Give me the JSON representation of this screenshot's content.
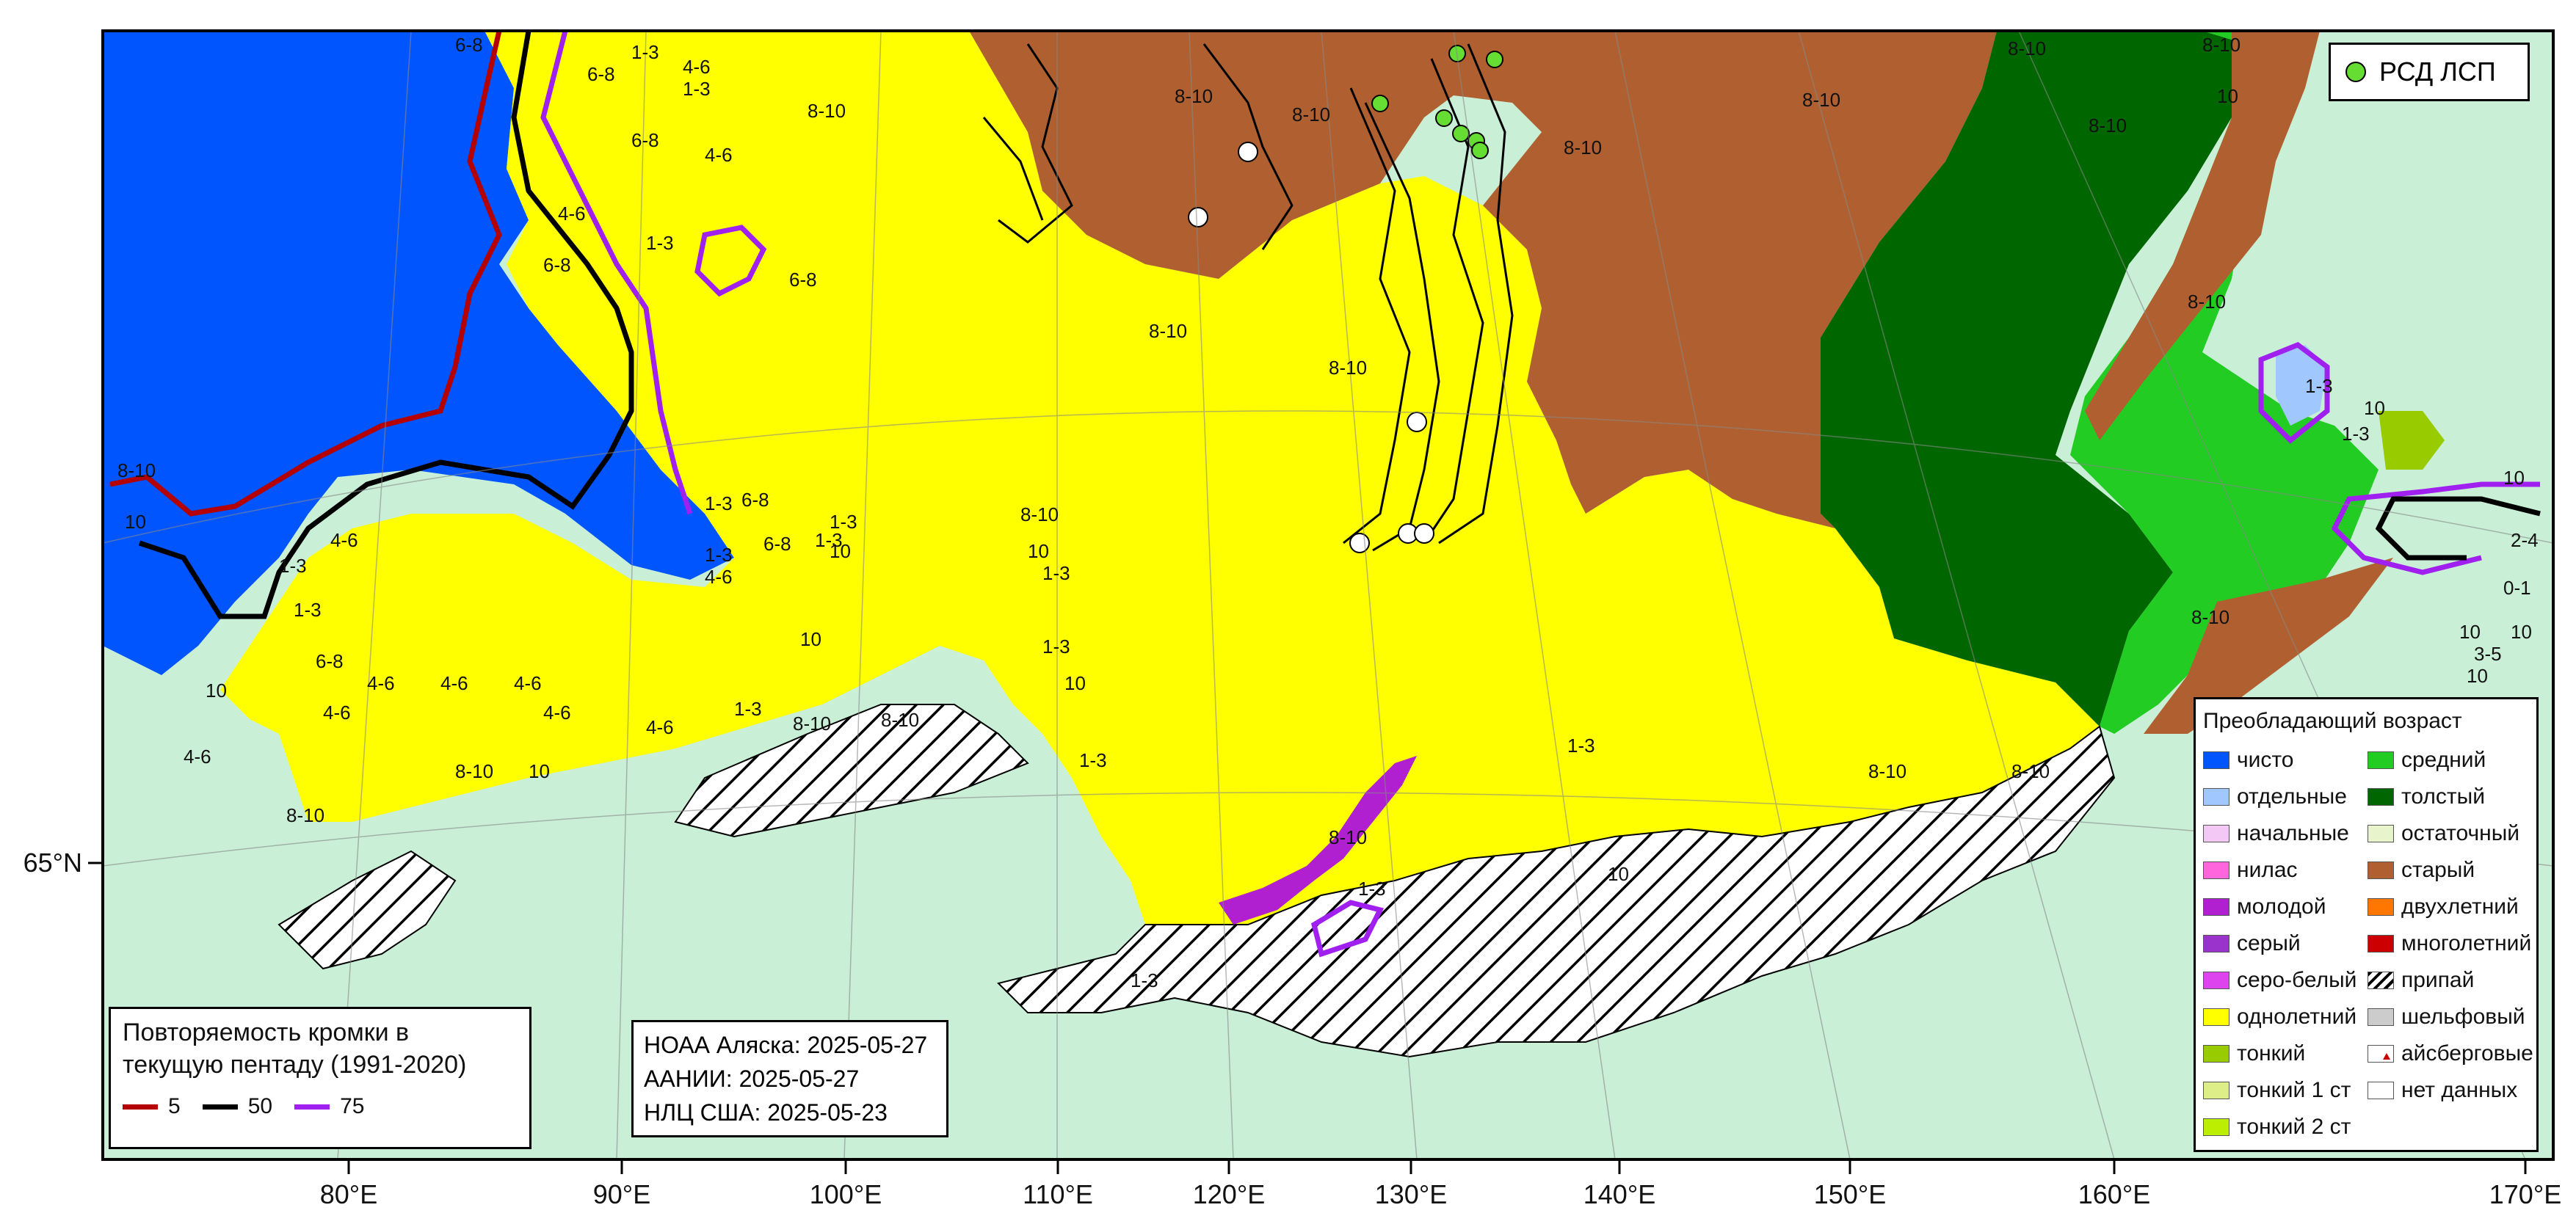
{
  "latitude_labels": [
    "65°N"
  ],
  "longitude_labels": [
    "80°E",
    "90°E",
    "100°E",
    "110°E",
    "120°E",
    "130°E",
    "140°E",
    "150°E",
    "160°E",
    "170°E"
  ],
  "region_labels": [
    "1-3",
    "4-6",
    "6-8",
    "8-10",
    "10",
    "0-1",
    "2-4",
    "3-5"
  ],
  "top_legend": {
    "label": "РСД ЛСП",
    "marker_color": "#66dd33"
  },
  "edge_legend": {
    "title": "Повторяемость кромки в текущую пентаду (1991-2020)",
    "items": [
      {
        "label": "5",
        "color": "#b40000"
      },
      {
        "label": "50",
        "color": "#000000"
      },
      {
        "label": "75",
        "color": "#a020f0"
      }
    ]
  },
  "sources": {
    "noaa": "НОАА Аляска: 2025-05-27",
    "aari": "ААНИИ: 2025-05-27",
    "nlc": "НЛЦ США: 2025-05-23"
  },
  "age_legend": {
    "title": "Преобладающий возраст",
    "left": [
      {
        "label": "чисто",
        "color": "#0055ff"
      },
      {
        "label": "отдельные",
        "color": "#a0c8ff"
      },
      {
        "label": "начальные",
        "color": "#f4c8f4"
      },
      {
        "label": "нилас",
        "color": "#ff66dd"
      },
      {
        "label": "молодой",
        "color": "#b020d0"
      },
      {
        "label": "серый",
        "color": "#9933cc"
      },
      {
        "label": "серо-белый",
        "color": "#dd44ee"
      },
      {
        "label": "однолетний",
        "color": "#ffff00"
      },
      {
        "label": "тонкий",
        "color": "#99cc00"
      },
      {
        "label": "тонкий 1 ст",
        "color": "#ddee88"
      },
      {
        "label": "тонкий 2 ст",
        "color": "#bbee00"
      }
    ],
    "right": [
      {
        "label": "средний",
        "color": "#22cc22"
      },
      {
        "label": "толстый",
        "color": "#006600"
      },
      {
        "label": "остаточный",
        "color": "#e8f4cc"
      },
      {
        "label": "старый",
        "color": "#b06030"
      },
      {
        "label": "двухлетний",
        "color": "#ff7700"
      },
      {
        "label": "многолетний",
        "color": "#cc0000"
      },
      {
        "label": "припай",
        "color": "hatch"
      },
      {
        "label": "шельфовый",
        "color": "#cccccc"
      },
      {
        "label": "айсберговые",
        "color": "iceberg"
      },
      {
        "label": "нет данных",
        "color": "#ffffff"
      }
    ]
  },
  "colors": {
    "land": "#c9f0d6",
    "water_open": "#0055ff",
    "first_year": "#ffff00",
    "old": "#b06030",
    "thick": "#006600",
    "medium": "#22cc22"
  }
}
